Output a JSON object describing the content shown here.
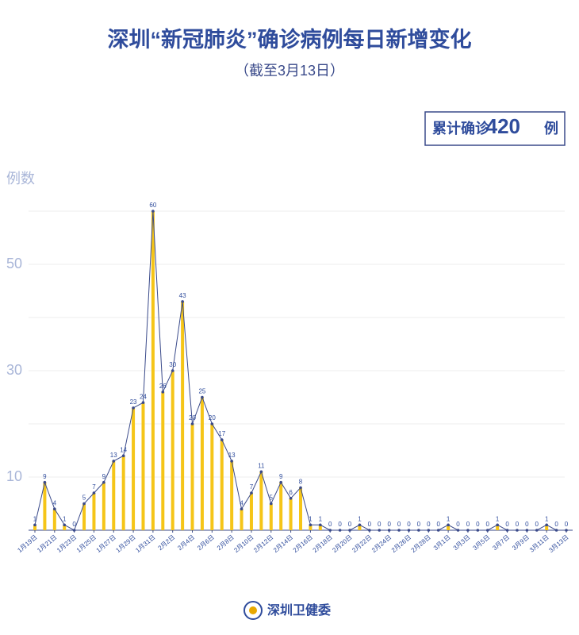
{
  "chart_data": {
    "type": "bar-line",
    "title": "深圳“新冠肺炎”确诊病例每日新增变化",
    "subtitle": "（截至3月13日）",
    "y_label": "例数",
    "total": {
      "prefix": "累计确诊",
      "value": 420,
      "unit": "例"
    },
    "categories": [
      "1月19日",
      null,
      "1月21日",
      null,
      "1月23日",
      null,
      "1月25日",
      null,
      "1月27日",
      null,
      "1月29日",
      null,
      "1月31日",
      null,
      "2月2日",
      null,
      "2月4日",
      null,
      "2月6日",
      null,
      "2月8日",
      null,
      "2月10日",
      null,
      "2月12日",
      null,
      "2月14日",
      null,
      "2月16日",
      null,
      "2月18日",
      null,
      "2月20日",
      null,
      "2月22日",
      null,
      "2月24日",
      null,
      "2月26日",
      null,
      "2月28日",
      null,
      "3月1日",
      null,
      "3月3日",
      null,
      "3月5日",
      null,
      "3月7日",
      null,
      "3月9日",
      null,
      "3月11日",
      null,
      "3月13日"
    ],
    "values": [
      1,
      9,
      4,
      1,
      0,
      5,
      7,
      9,
      13,
      14,
      23,
      24,
      60,
      26,
      30,
      43,
      20,
      25,
      20,
      17,
      13,
      4,
      7,
      11,
      5,
      9,
      6,
      8,
      1,
      1,
      0,
      0,
      0,
      1,
      0,
      0,
      0,
      0,
      0,
      0,
      0,
      0,
      1,
      0,
      0,
      0,
      0,
      1,
      0,
      0,
      0,
      0,
      1,
      0,
      0
    ],
    "bar_color": "#f5c518",
    "line_color": "#3a4a8a",
    "ylim": [
      0,
      60
    ],
    "yticks": [
      10,
      30,
      50
    ],
    "gridlines": [
      10,
      20,
      30,
      40,
      50,
      60
    ]
  },
  "footer": "深圳卫健委"
}
